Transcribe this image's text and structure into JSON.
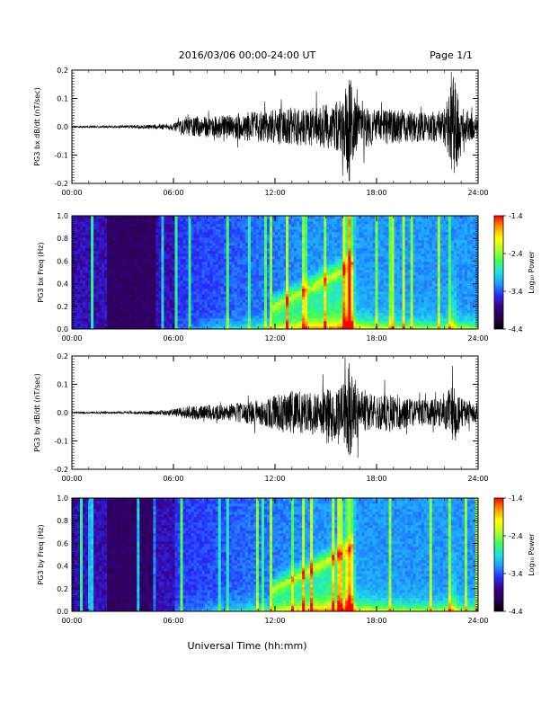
{
  "header": {
    "title": "2016/03/06  00:00-24:00 UT",
    "page_label": "Page 1/1"
  },
  "x_axis": {
    "label": "Universal Time (hh:mm)",
    "ticks": [
      "00:00",
      "06:00",
      "12:00",
      "18:00",
      "24:00"
    ]
  },
  "colorbar": {
    "title": "Log₁₀ Power",
    "ticks": [
      "-1.4",
      "-2.4",
      "-3.4",
      "-4.4"
    ],
    "range": [
      -4.4,
      -1.4
    ],
    "colors": [
      "#000000",
      "#2a0050",
      "#3a0080",
      "#2a2cff",
      "#1f9bff",
      "#22e0e0",
      "#3cff5a",
      "#b4ff28",
      "#ffff00",
      "#ff9a00",
      "#ff0000"
    ]
  },
  "chart_data": [
    {
      "type": "line",
      "ylabel": "PG3 bx dB/dt (nT/sec)",
      "xlim": [
        0,
        24
      ],
      "ylim": [
        -0.2,
        0.2
      ],
      "yticks": [
        "0.2",
        "0.1",
        "0.0",
        "-0.1",
        "-0.2"
      ],
      "envelope": {
        "hours": [
          0,
          3,
          5,
          6,
          7,
          9,
          10,
          11,
          12,
          13,
          14,
          15,
          16,
          16.4,
          16.6,
          17,
          18,
          19,
          20,
          21,
          22,
          22.6,
          23,
          24
        ],
        "amplitude": [
          0.003,
          0.005,
          0.008,
          0.012,
          0.035,
          0.04,
          0.05,
          0.055,
          0.06,
          0.07,
          0.065,
          0.08,
          0.1,
          0.2,
          0.11,
          0.08,
          0.06,
          0.065,
          0.055,
          0.05,
          0.06,
          0.19,
          0.07,
          0.04
        ]
      }
    },
    {
      "type": "heatmap",
      "ylabel": "PG3 bx Freq (Hz)",
      "xlim": [
        0,
        24
      ],
      "ylim": [
        0,
        1.0
      ],
      "yticks": [
        "1.0",
        "0.8",
        "0.6",
        "0.4",
        "0.2",
        "0.0"
      ],
      "zrange": [
        -4.4,
        -1.4
      ]
    },
    {
      "type": "line",
      "ylabel": "PG3 by dB/dt (nT/sec)",
      "xlim": [
        0,
        24
      ],
      "ylim": [
        -0.2,
        0.2
      ],
      "yticks": [
        "0.2",
        "0.1",
        "0.0",
        "-0.1",
        "-0.2"
      ],
      "envelope": {
        "hours": [
          0,
          3,
          5,
          6,
          7,
          9,
          10,
          11,
          12,
          13,
          14,
          15,
          16,
          16.4,
          16.6,
          17,
          18,
          19,
          20,
          21,
          22,
          22.6,
          23,
          24
        ],
        "amplitude": [
          0.003,
          0.004,
          0.007,
          0.012,
          0.025,
          0.03,
          0.035,
          0.045,
          0.06,
          0.08,
          0.075,
          0.085,
          0.1,
          0.18,
          0.12,
          0.08,
          0.06,
          0.07,
          0.05,
          0.045,
          0.055,
          0.11,
          0.05,
          0.035
        ]
      }
    },
    {
      "type": "heatmap",
      "ylabel": "PG3 by Freq (Hz)",
      "xlim": [
        0,
        24
      ],
      "ylim": [
        0,
        1.0
      ],
      "yticks": [
        "1.0",
        "0.8",
        "0.6",
        "0.4",
        "0.2",
        "0.0"
      ],
      "zrange": [
        -4.4,
        -1.4
      ]
    }
  ]
}
